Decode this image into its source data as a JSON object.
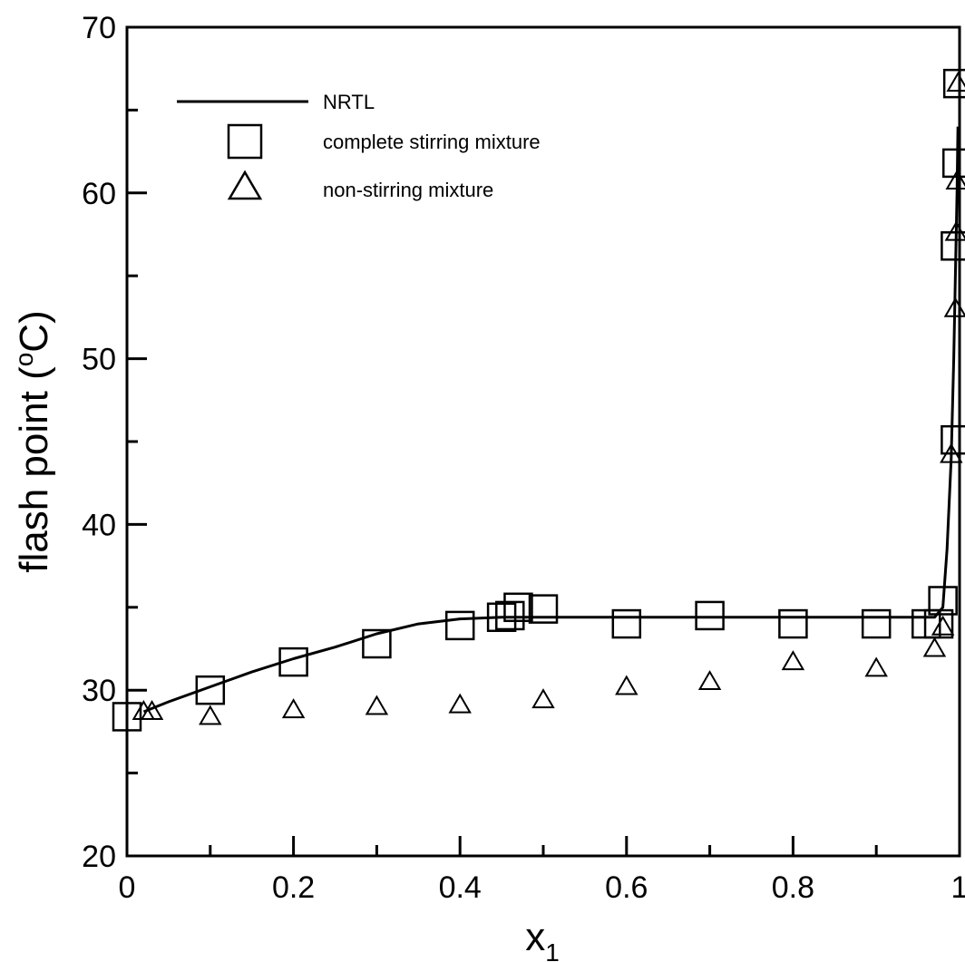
{
  "chart_data": {
    "type": "scatter",
    "title": "",
    "xlabel": "x",
    "xlabel_sub": "1",
    "ylabel": "flash point (",
    "ylabel_sup": "o",
    "ylabel_tail": "C)",
    "xlim": [
      0,
      1
    ],
    "ylim": [
      20,
      70
    ],
    "xticks": [
      "0",
      "0.2",
      "0.4",
      "0.6",
      "0.8",
      "1"
    ],
    "yticks": [
      "20",
      "30",
      "40",
      "50",
      "60",
      "70"
    ],
    "grid": false,
    "legend_position": "top-left",
    "series": [
      {
        "name": "NRTL",
        "kind": "line",
        "x": [
          0.02,
          0.05,
          0.1,
          0.15,
          0.2,
          0.25,
          0.3,
          0.35,
          0.4,
          0.45,
          0.5,
          0.6,
          0.7,
          0.8,
          0.9,
          0.97,
          0.98,
          0.985,
          0.99,
          0.993,
          0.995,
          0.997,
          0.998
        ],
        "y": [
          28.7,
          29.3,
          30.2,
          31.1,
          31.9,
          32.6,
          33.4,
          34.0,
          34.3,
          34.4,
          34.4,
          34.4,
          34.4,
          34.4,
          34.4,
          34.4,
          35.0,
          38.5,
          44.0,
          50.0,
          55.0,
          60.0,
          64.0
        ]
      },
      {
        "name": "complete stirring mixture",
        "kind": "square",
        "x": [
          0.0,
          0.1,
          0.2,
          0.3,
          0.4,
          0.45,
          0.46,
          0.47,
          0.5,
          0.6,
          0.7,
          0.8,
          0.9,
          0.96,
          0.975,
          0.98,
          0.995,
          0.995,
          0.997,
          0.998
        ],
        "y": [
          28.4,
          30.0,
          31.7,
          32.8,
          33.9,
          34.4,
          34.5,
          35.0,
          34.9,
          34.0,
          34.5,
          34.0,
          34.0,
          34.0,
          34.0,
          35.4,
          45.1,
          56.8,
          61.8,
          66.6
        ]
      },
      {
        "name": "non-stirring mixture",
        "kind": "triangle",
        "x": [
          0.02,
          0.03,
          0.1,
          0.2,
          0.3,
          0.4,
          0.5,
          0.6,
          0.7,
          0.8,
          0.9,
          0.97,
          0.98,
          0.99,
          0.995,
          0.996,
          0.997,
          0.998
        ],
        "y": [
          28.7,
          28.7,
          28.4,
          28.8,
          29.0,
          29.1,
          29.4,
          30.2,
          30.5,
          31.7,
          31.3,
          32.5,
          33.8,
          44.2,
          53.0,
          57.6,
          60.7,
          66.6
        ]
      }
    ]
  }
}
